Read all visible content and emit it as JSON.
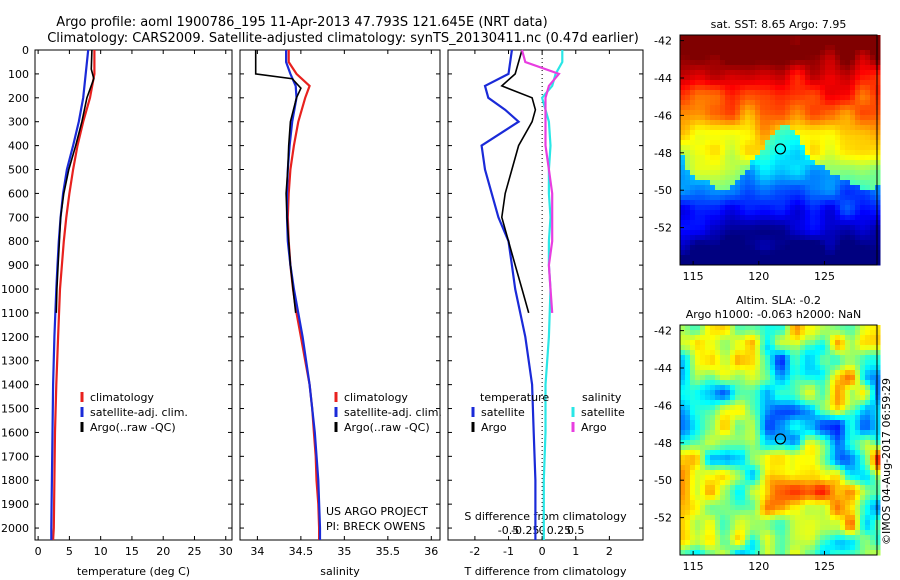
{
  "header": {
    "line1": "Argo profile: aoml 1900786_195 11-Apr-2013 47.793S 121.645E (NRT data)",
    "line2": "Climatology: CARS2009. Satellite-adjusted climatology: synTS_20130411.nc (0.47d earlier)"
  },
  "colors": {
    "climatology": "#e8211e",
    "satellite": "#1a2ad8",
    "argo": "#000000",
    "sat_salinity": "#29e6e6",
    "argo_salinity": "#e83ee0"
  },
  "chart_data": [
    {
      "type": "line",
      "id": "temperature",
      "xlabel": "temperature (deg C)",
      "ylabel": "",
      "xlim": [
        -0.5,
        31
      ],
      "ylim": [
        2050,
        0
      ],
      "x_ticks": [
        0,
        5,
        10,
        15,
        20,
        25,
        30
      ],
      "y_ticks": [
        0,
        100,
        200,
        300,
        400,
        500,
        600,
        700,
        800,
        900,
        1000,
        1100,
        1200,
        1300,
        1400,
        1500,
        1600,
        1700,
        1800,
        1900,
        2000
      ],
      "legend": [
        "climatology",
        "satellite-adj. clim.",
        "Argo(..raw -QC)"
      ],
      "series": [
        {
          "name": "climatology",
          "color": "#e8211e",
          "depth": [
            0,
            100,
            200,
            300,
            400,
            500,
            600,
            700,
            800,
            900,
            1000,
            1200,
            1400,
            1600,
            1800,
            2000,
            2050
          ],
          "values": [
            9.0,
            9.0,
            8.3,
            7.2,
            6.3,
            5.6,
            5.0,
            4.5,
            4.1,
            3.8,
            3.5,
            3.2,
            2.9,
            2.7,
            2.6,
            2.5,
            2.4
          ]
        },
        {
          "name": "satellite-adj. clim.",
          "color": "#1a2ad8",
          "depth": [
            0,
            100,
            200,
            300,
            400,
            500,
            600,
            700,
            800,
            900,
            1000,
            1200,
            1400,
            1600,
            1800,
            2000,
            2050
          ],
          "values": [
            8.0,
            7.6,
            7.2,
            6.5,
            5.6,
            4.6,
            4.0,
            3.6,
            3.3,
            3.1,
            2.9,
            2.6,
            2.4,
            2.3,
            2.2,
            2.1,
            2.1
          ]
        },
        {
          "name": "Argo(..raw -QC)",
          "color": "#000000",
          "depth": [
            0,
            80,
            120,
            200,
            300,
            400,
            500,
            600,
            700,
            800,
            900,
            1000,
            1100
          ],
          "values": [
            8.6,
            8.5,
            8.9,
            7.8,
            7.0,
            6.0,
            4.9,
            4.1,
            3.6,
            3.4,
            3.2,
            3.0,
            2.9
          ]
        }
      ]
    },
    {
      "type": "line",
      "id": "salinity",
      "xlabel": "salinity",
      "xlim": [
        33.8,
        36.1
      ],
      "ylim": [
        2050,
        0
      ],
      "x_ticks": [
        34,
        34.5,
        35,
        35.5,
        36
      ],
      "legend": [
        "climatology",
        "satellite-adj. clim.",
        "Argo(..raw -QC)"
      ],
      "annotation": [
        "US ARGO PROJECT",
        "PI: BRECK OWENS"
      ],
      "series": [
        {
          "name": "climatology",
          "color": "#e8211e",
          "depth": [
            0,
            50,
            100,
            150,
            200,
            300,
            400,
            500,
            600,
            700,
            800,
            900,
            1000,
            1100,
            1200,
            1300,
            1400,
            1500,
            1600,
            1700,
            1800,
            1900,
            2000,
            2050
          ],
          "values": [
            34.36,
            34.36,
            34.45,
            34.6,
            34.55,
            34.47,
            34.42,
            34.38,
            34.36,
            34.35,
            34.36,
            34.38,
            34.41,
            34.45,
            34.5,
            34.55,
            34.6,
            34.63,
            34.65,
            34.67,
            34.68,
            34.7,
            34.71,
            34.71
          ]
        },
        {
          "name": "satellite-adj. clim.",
          "color": "#1a2ad8",
          "depth": [
            0,
            50,
            100,
            150,
            200,
            300,
            400,
            500,
            600,
            700,
            800,
            900,
            1000,
            1200,
            1400,
            1600,
            1800,
            2000,
            2050
          ],
          "values": [
            34.33,
            34.33,
            34.38,
            34.44,
            34.45,
            34.4,
            34.37,
            34.35,
            34.34,
            34.34,
            34.35,
            34.38,
            34.42,
            34.52,
            34.6,
            34.66,
            34.7,
            34.72,
            34.72
          ]
        },
        {
          "name": "Argo(..raw -QC)",
          "color": "#000000",
          "depth": [
            0,
            100,
            120,
            160,
            200,
            300,
            400,
            500,
            600,
            700,
            800,
            900,
            1000,
            1100
          ],
          "values": [
            33.98,
            33.98,
            34.4,
            34.5,
            34.45,
            34.38,
            34.36,
            34.35,
            34.33,
            34.34,
            34.36,
            34.38,
            34.41,
            34.44
          ]
        }
      ]
    },
    {
      "type": "line",
      "id": "difference",
      "xlabel": "T difference from climatology",
      "xlabel_top": "S difference from climatology",
      "xlim": [
        -2.8,
        3.0
      ],
      "ylim": [
        2050,
        0
      ],
      "x_ticks": [
        -2,
        -1,
        0,
        1,
        2
      ],
      "s_ticks": [
        "-0.5",
        "-0.25",
        "0",
        "0.25",
        "0.5"
      ],
      "legend_groups": [
        {
          "title": "temperature",
          "items": [
            {
              "name": "satellite",
              "color": "#1a2ad8"
            },
            {
              "name": "Argo",
              "color": "#000000"
            }
          ]
        },
        {
          "title": "salinity",
          "items": [
            {
              "name": "satellite",
              "color": "#29e6e6"
            },
            {
              "name": "Argo",
              "color": "#e83ee0"
            }
          ]
        }
      ],
      "series": [
        {
          "name": "temperature satellite",
          "color": "#1a2ad8",
          "depth": [
            0,
            100,
            150,
            200,
            250,
            300,
            400,
            500,
            600,
            700,
            800,
            900,
            1000,
            1200,
            1400,
            1600,
            1800,
            2000,
            2050
          ],
          "values": [
            -0.9,
            -1.0,
            -1.7,
            -1.6,
            -1.1,
            -0.7,
            -1.8,
            -1.7,
            -1.5,
            -1.3,
            -1.0,
            -0.9,
            -0.8,
            -0.5,
            -0.3,
            -0.25,
            -0.2,
            -0.2,
            -0.2
          ]
        },
        {
          "name": "temperature Argo",
          "color": "#000000",
          "depth": [
            0,
            100,
            150,
            200,
            250,
            300,
            400,
            500,
            600,
            700,
            800,
            900,
            1000,
            1100
          ],
          "values": [
            -0.6,
            -0.8,
            -1.2,
            -0.3,
            -0.2,
            -0.3,
            -0.7,
            -0.9,
            -1.1,
            -1.2,
            -1.0,
            -0.8,
            -0.6,
            -0.4
          ]
        },
        {
          "name": "salinity satellite",
          "color": "#29e6e6",
          "depth": [
            0,
            50,
            100,
            150,
            200,
            300,
            400,
            500,
            600,
            700,
            800,
            900,
            1000,
            1200,
            1400,
            1600,
            1800,
            2000,
            2050
          ],
          "values": [
            0.6,
            0.6,
            0.4,
            0.3,
            0.0,
            0.2,
            0.25,
            0.2,
            0.2,
            0.25,
            0.2,
            0.2,
            0.25,
            0.2,
            0.1,
            0.1,
            0.05,
            0.05,
            0.05
          ]
        },
        {
          "name": "salinity Argo",
          "color": "#e83ee0",
          "depth": [
            0,
            50,
            100,
            150,
            200,
            300,
            400,
            500,
            600,
            700,
            800,
            900,
            1000,
            1100
          ],
          "values": [
            -0.6,
            -0.5,
            0.5,
            0.2,
            0.1,
            0.1,
            0.1,
            0.2,
            0.3,
            0.3,
            0.3,
            0.2,
            0.25,
            0.3
          ]
        }
      ]
    },
    {
      "type": "heatmap",
      "id": "sst-map",
      "title": "sat. SST: 8.65 Argo: 7.95",
      "x_ticks": [
        115,
        120,
        125
      ],
      "y_ticks": [
        -42,
        -44,
        -46,
        -48,
        -50,
        -52
      ],
      "xlim": [
        114,
        129
      ],
      "ylim": [
        -54,
        -41.7
      ],
      "marker": {
        "lon": 121.645,
        "lat": -47.793
      }
    },
    {
      "type": "heatmap",
      "id": "sla-map",
      "title": "Altim. SLA: -0.2",
      "subtitle": "Argo h1000: -0.063 h2000: NaN",
      "x_ticks": [
        115,
        120,
        125
      ],
      "y_ticks": [
        -42,
        -44,
        -46,
        -48,
        -50,
        -52
      ],
      "xlim": [
        114,
        129
      ],
      "ylim": [
        -54,
        -41.7
      ],
      "marker": {
        "lon": 121.645,
        "lat": -47.793
      }
    }
  ],
  "credit": "©IMOS 04-Aug-2017 06:59:29"
}
